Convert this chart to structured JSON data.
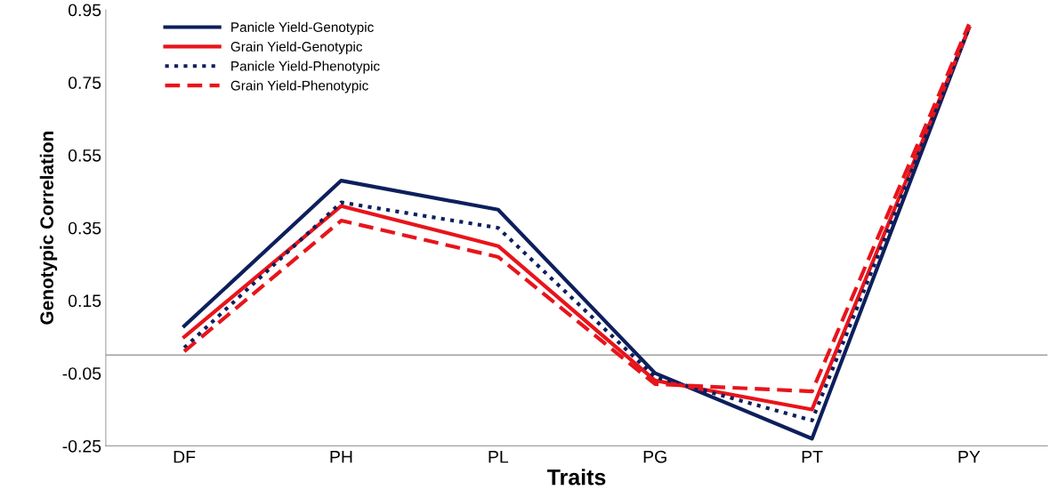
{
  "chart_data": {
    "type": "line",
    "xlabel": "Traits",
    "ylabel": "Genotypic Correlation",
    "categories": [
      "DF",
      "PH",
      "PL",
      "PG",
      "PT",
      "PY"
    ],
    "series": [
      {
        "name": "Panicle Yield-Genotypic",
        "color": "#0d1f5c",
        "line_style": "solid",
        "values": [
          0.08,
          0.48,
          0.4,
          -0.05,
          -0.23,
          0.9
        ]
      },
      {
        "name": "Grain Yield-Genotypic",
        "color": "#e8141b",
        "line_style": "solid",
        "values": [
          0.05,
          0.41,
          0.3,
          -0.07,
          -0.15,
          0.9
        ]
      },
      {
        "name": "Panicle Yield-Phenotypic",
        "color": "#0d1f5c",
        "line_style": "dotted",
        "values": [
          0.02,
          0.42,
          0.35,
          -0.06,
          -0.18,
          0.9
        ]
      },
      {
        "name": "Grain Yield-Phenotypic",
        "color": "#e8141b",
        "line_style": "dashed",
        "values": [
          0.01,
          0.37,
          0.27,
          -0.08,
          -0.1,
          0.91
        ]
      }
    ],
    "ylim": [
      -0.25,
      0.95
    ],
    "yticks": [
      -0.25,
      -0.05,
      0.15,
      0.35,
      0.55,
      0.75,
      0.95
    ],
    "ref_lines": [
      {
        "axis": "y",
        "value": 0,
        "color": "#a0a0a0"
      }
    ],
    "grid": false,
    "legend": "top left",
    "marker": "none"
  }
}
